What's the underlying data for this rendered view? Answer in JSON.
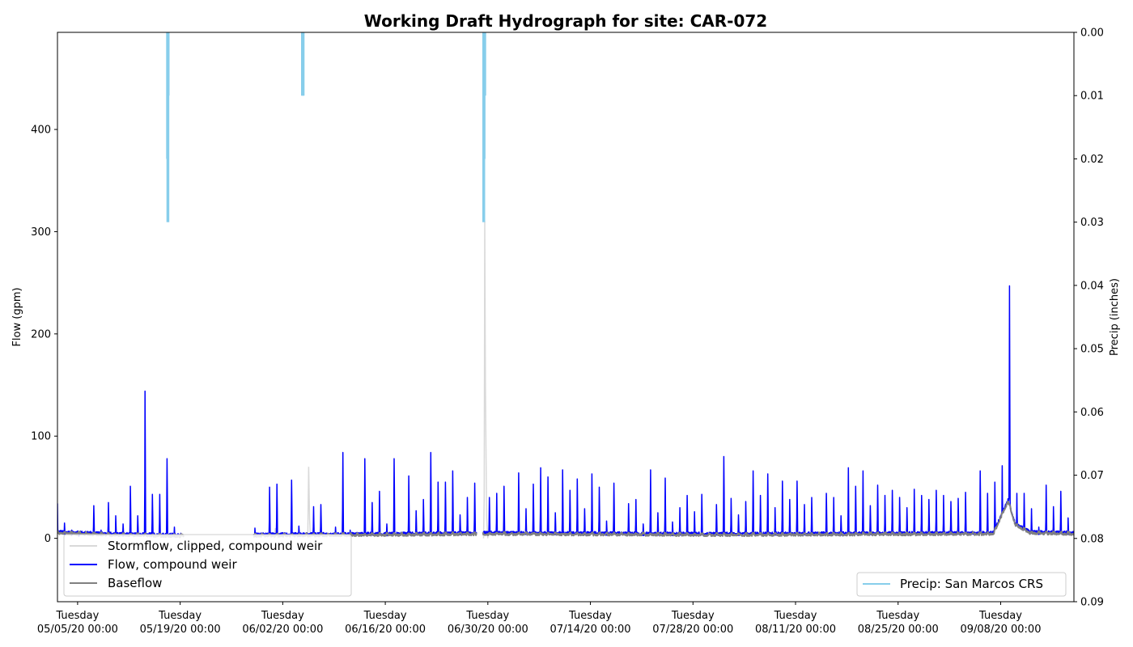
{
  "chart_data": {
    "type": "line",
    "title": "Working Draft Hydrograph for site: CAR-072",
    "ylabel": "Flow (gpm)",
    "y2label": "Precip (inches)",
    "ylim": [
      -62,
      495
    ],
    "y2lim": [
      0.09,
      0.0
    ],
    "y2_inverted": true,
    "yticks": [
      0,
      100,
      200,
      300,
      400
    ],
    "y2ticks": [
      0.0,
      0.01,
      0.02,
      0.03,
      0.04,
      0.05,
      0.06,
      0.07,
      0.08,
      0.09
    ],
    "xlim": [
      "2020-05-02 06:00",
      "2020-09-18 00:00"
    ],
    "xticks": [
      {
        "date": "2020-05-05 00:00",
        "line1": "Tuesday",
        "line2": "05/05/20 00:00"
      },
      {
        "date": "2020-05-19 00:00",
        "line1": "Tuesday",
        "line2": "05/19/20 00:00"
      },
      {
        "date": "2020-06-02 00:00",
        "line1": "Tuesday",
        "line2": "06/02/20 00:00"
      },
      {
        "date": "2020-06-16 00:00",
        "line1": "Tuesday",
        "line2": "06/16/20 00:00"
      },
      {
        "date": "2020-06-30 00:00",
        "line1": "Tuesday",
        "line2": "06/30/20 00:00"
      },
      {
        "date": "2020-07-14 00:00",
        "line1": "Tuesday",
        "line2": "07/14/20 00:00"
      },
      {
        "date": "2020-07-28 00:00",
        "line1": "Tuesday",
        "line2": "07/28/20 00:00"
      },
      {
        "date": "2020-08-11 00:00",
        "line1": "Tuesday",
        "line2": "08/11/20 00:00"
      },
      {
        "date": "2020-08-25 00:00",
        "line1": "Tuesday",
        "line2": "08/25/20 00:00"
      },
      {
        "date": "2020-09-08 00:00",
        "line1": "Tuesday",
        "line2": "09/08/20 00:00"
      }
    ],
    "series": [
      {
        "name": "Stormflow, clipped, compound weir",
        "color": "#d9d9d9",
        "points": [
          [
            "2020-05-31 20:00",
            0
          ],
          [
            "2020-06-01 00:00",
            10
          ],
          [
            "2020-06-01 04:00",
            5
          ],
          [
            "2020-06-01 08:00",
            0
          ],
          [
            "2020-06-05 10:00",
            0
          ],
          [
            "2020-06-05 13:00",
            70
          ],
          [
            "2020-06-05 16:00",
            20
          ],
          [
            "2020-06-05 19:00",
            0
          ],
          [
            "2020-06-29 10:00",
            0
          ],
          [
            "2020-06-29 12:00",
            40
          ],
          [
            "2020-06-29 14:00",
            310
          ],
          [
            "2020-06-29 16:00",
            150
          ],
          [
            "2020-06-29 20:00",
            20
          ],
          [
            "2020-06-30 00:00",
            0
          ]
        ]
      },
      {
        "name": "Flow, compound weir",
        "color": "#0000ff",
        "daily_peaks": [
          [
            "2020-05-02",
            62
          ],
          [
            "2020-05-03",
            15
          ],
          [
            "2020-05-04",
            8
          ],
          [
            "2020-05-05",
            6
          ],
          [
            "2020-05-07",
            32
          ],
          [
            "2020-05-08",
            8
          ],
          [
            "2020-05-09",
            35
          ],
          [
            "2020-05-10",
            22
          ],
          [
            "2020-05-11",
            14
          ],
          [
            "2020-05-12",
            51
          ],
          [
            "2020-05-13",
            22
          ],
          [
            "2020-05-14",
            144
          ],
          [
            "2020-05-15",
            43
          ],
          [
            "2020-05-16",
            43
          ],
          [
            "2020-05-17",
            78
          ],
          [
            "2020-05-18",
            11
          ],
          [
            "2020-05-22",
            14
          ],
          [
            "2020-05-23",
            53
          ],
          [
            "2020-05-24",
            44
          ],
          [
            "2020-05-29",
            10
          ],
          [
            "2020-05-31",
            50
          ],
          [
            "2020-06-01",
            53
          ],
          [
            "2020-06-03",
            57
          ],
          [
            "2020-06-04",
            12
          ],
          [
            "2020-06-06",
            31
          ],
          [
            "2020-06-07",
            33
          ],
          [
            "2020-06-09",
            11
          ],
          [
            "2020-06-10",
            84
          ],
          [
            "2020-06-11",
            8
          ],
          [
            "2020-06-13",
            78
          ],
          [
            "2020-06-14",
            35
          ],
          [
            "2020-06-15",
            46
          ],
          [
            "2020-06-16",
            14
          ],
          [
            "2020-06-17",
            78
          ],
          [
            "2020-06-19",
            61
          ],
          [
            "2020-06-20",
            27
          ],
          [
            "2020-06-21",
            38
          ],
          [
            "2020-06-22",
            84
          ],
          [
            "2020-06-23",
            55
          ],
          [
            "2020-06-24",
            55
          ],
          [
            "2020-06-25",
            66
          ],
          [
            "2020-06-26",
            23
          ],
          [
            "2020-06-27",
            40
          ],
          [
            "2020-06-28",
            54
          ],
          [
            "2020-06-29",
            88
          ],
          [
            "2020-06-30",
            40
          ],
          [
            "2020-07-01",
            44
          ],
          [
            "2020-07-02",
            51
          ],
          [
            "2020-07-04",
            64
          ],
          [
            "2020-07-05",
            29
          ],
          [
            "2020-07-06",
            53
          ],
          [
            "2020-07-07",
            69
          ],
          [
            "2020-07-08",
            60
          ],
          [
            "2020-07-09",
            25
          ],
          [
            "2020-07-10",
            67
          ],
          [
            "2020-07-11",
            47
          ],
          [
            "2020-07-12",
            58
          ],
          [
            "2020-07-13",
            29
          ],
          [
            "2020-07-14",
            63
          ],
          [
            "2020-07-15",
            50
          ],
          [
            "2020-07-16",
            17
          ],
          [
            "2020-07-17",
            54
          ],
          [
            "2020-07-19",
            34
          ],
          [
            "2020-07-20",
            38
          ],
          [
            "2020-07-21",
            14
          ],
          [
            "2020-07-22",
            67
          ],
          [
            "2020-07-23",
            25
          ],
          [
            "2020-07-24",
            59
          ],
          [
            "2020-07-25",
            16
          ],
          [
            "2020-07-26",
            30
          ],
          [
            "2020-07-27",
            42
          ],
          [
            "2020-07-28",
            26
          ],
          [
            "2020-07-29",
            43
          ],
          [
            "2020-07-31",
            33
          ],
          [
            "2020-08-01",
            80
          ],
          [
            "2020-08-02",
            39
          ],
          [
            "2020-08-03",
            23
          ],
          [
            "2020-08-04",
            36
          ],
          [
            "2020-08-05",
            66
          ],
          [
            "2020-08-06",
            42
          ],
          [
            "2020-08-07",
            63
          ],
          [
            "2020-08-08",
            30
          ],
          [
            "2020-08-09",
            56
          ],
          [
            "2020-08-10",
            38
          ],
          [
            "2020-08-11",
            56
          ],
          [
            "2020-08-12",
            33
          ],
          [
            "2020-08-13",
            40
          ],
          [
            "2020-08-15",
            44
          ],
          [
            "2020-08-16",
            40
          ],
          [
            "2020-08-17",
            22
          ],
          [
            "2020-08-18",
            69
          ],
          [
            "2020-08-19",
            51
          ],
          [
            "2020-08-20",
            66
          ],
          [
            "2020-08-21",
            32
          ],
          [
            "2020-08-22",
            52
          ],
          [
            "2020-08-23",
            42
          ],
          [
            "2020-08-24",
            47
          ],
          [
            "2020-08-25",
            40
          ],
          [
            "2020-08-26",
            30
          ],
          [
            "2020-08-27",
            48
          ],
          [
            "2020-08-28",
            42
          ],
          [
            "2020-08-29",
            38
          ],
          [
            "2020-08-30",
            47
          ],
          [
            "2020-08-31",
            42
          ],
          [
            "2020-09-01",
            36
          ],
          [
            "2020-09-02",
            39
          ],
          [
            "2020-09-03",
            45
          ],
          [
            "2020-09-05",
            66
          ],
          [
            "2020-09-06",
            44
          ],
          [
            "2020-09-07",
            55
          ],
          [
            "2020-09-08",
            71
          ],
          [
            "2020-09-09",
            247
          ],
          [
            "2020-09-10",
            44
          ],
          [
            "2020-09-11",
            44
          ],
          [
            "2020-09-12",
            29
          ],
          [
            "2020-09-13",
            11
          ],
          [
            "2020-09-14",
            52
          ],
          [
            "2020-09-15",
            31
          ],
          [
            "2020-09-16",
            46
          ],
          [
            "2020-09-17",
            20
          ]
        ],
        "gaps": [
          [
            "2020-05-19 12:00",
            "2020-05-29 00:00"
          ],
          [
            "2020-06-28 12:00",
            "2020-06-29 06:00"
          ]
        ]
      },
      {
        "name": "Baseflow",
        "color": "#808080",
        "level": [
          [
            "2020-05-02",
            4
          ],
          [
            "2020-05-10",
            2
          ],
          [
            "2020-05-19",
            1
          ],
          [
            "2020-06-15",
            2
          ],
          [
            "2020-07-01",
            3
          ],
          [
            "2020-08-01",
            2
          ],
          [
            "2020-09-07",
            3
          ],
          [
            "2020-09-09",
            35
          ],
          [
            "2020-09-10",
            12
          ],
          [
            "2020-09-12",
            4
          ],
          [
            "2020-09-18",
            3
          ]
        ]
      },
      {
        "name": "Precip: San Marcos CRS",
        "color": "#87ceeb",
        "axis": "right",
        "bars": [
          [
            "2020-05-17 06:00",
            0.02
          ],
          [
            "2020-05-17 07:00",
            0.03
          ],
          [
            "2020-05-17 08:00",
            0.01
          ],
          [
            "2020-06-04 16:00",
            0.01
          ],
          [
            "2020-06-04 17:00",
            0.01
          ],
          [
            "2020-06-04 18:00",
            0.01
          ],
          [
            "2020-06-29 10:00",
            0.03
          ],
          [
            "2020-06-29 11:00",
            0.02
          ],
          [
            "2020-06-29 12:00",
            0.01
          ],
          [
            "2020-06-29 13:00",
            0.01
          ]
        ]
      }
    ],
    "legend_left": [
      "Stormflow, clipped, compound weir",
      "Flow, compound weir",
      "Baseflow"
    ],
    "legend_left_position": "lower-left",
    "legend_right": [
      "Precip: San Marcos CRS"
    ],
    "legend_right_position": "lower-right",
    "grid": false
  }
}
